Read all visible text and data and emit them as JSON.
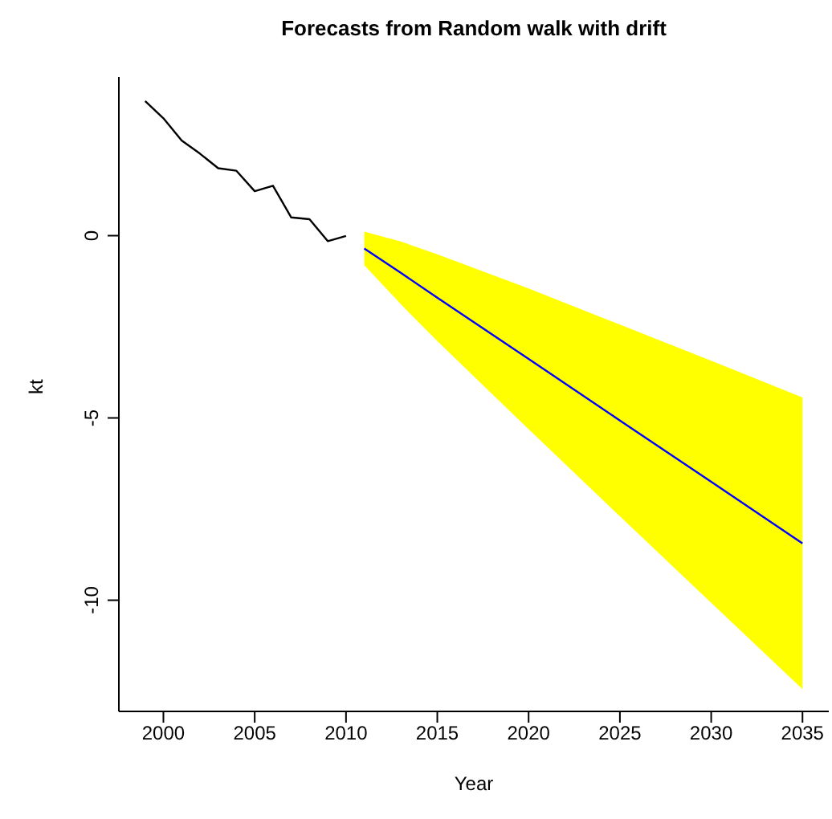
{
  "chart_data": {
    "type": "line",
    "title": "Forecasts from Random walk with drift",
    "xlabel": "Year",
    "ylabel": "kt",
    "xlim": [
      1997.56,
      2036.44
    ],
    "xticks": [
      2000,
      2005,
      2010,
      2015,
      2020,
      2025,
      2030,
      2035
    ],
    "ylim": [
      -13.05,
      4.35
    ],
    "yticks": [
      -10,
      -5,
      0
    ],
    "grid": false,
    "legend": false,
    "series": [
      {
        "color": "#000000",
        "x": [
          1999,
          2000,
          2001,
          2002,
          2003,
          2004,
          2005,
          2006,
          2007,
          2008,
          2009,
          2010
        ],
        "values": [
          3.69,
          3.22,
          2.61,
          2.25,
          1.85,
          1.78,
          1.22,
          1.37,
          0.5,
          0.45,
          -0.15,
          -0.01
        ]
      },
      {
        "color": "#0000ff",
        "x": [
          2011,
          2013,
          2015,
          2020,
          2025,
          2030,
          2035
        ],
        "values": [
          -0.35,
          -1.02,
          -1.7,
          -3.38,
          -5.07,
          -6.75,
          -8.44
        ],
        "lower": [
          -0.81,
          -1.88,
          -2.89,
          -5.31,
          -7.7,
          -10.07,
          -12.44
        ],
        "upper": [
          0.11,
          -0.16,
          -0.51,
          -1.45,
          -2.44,
          -3.43,
          -4.44
        ]
      }
    ]
  }
}
